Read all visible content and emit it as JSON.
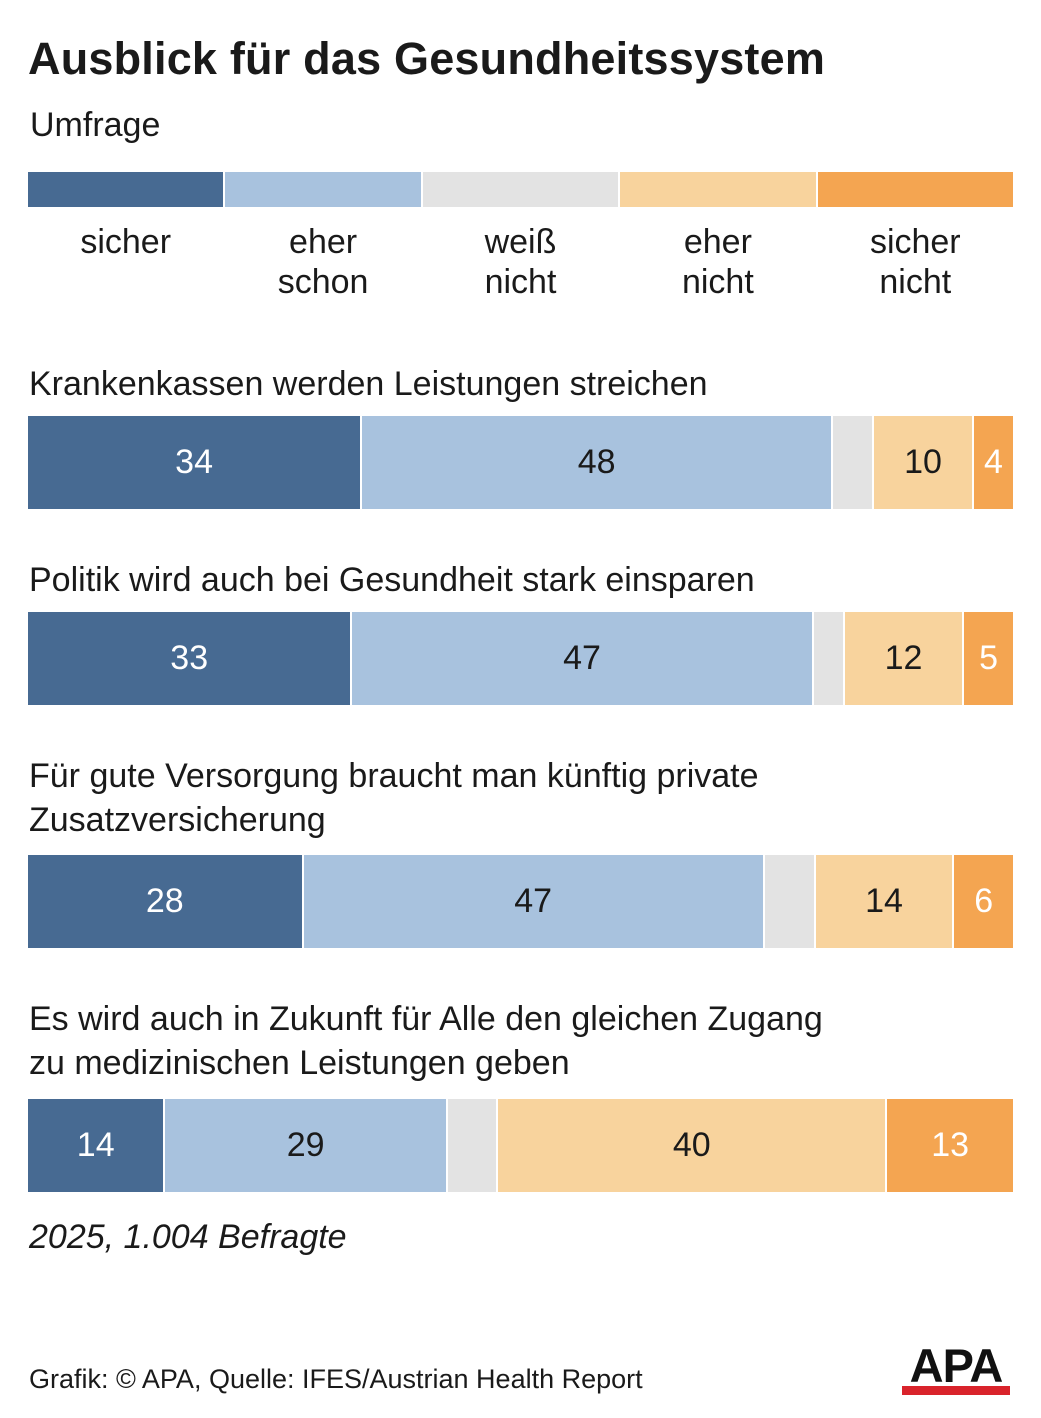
{
  "title": "Ausblick für das Gesundheitssystem",
  "subtitle": "Umfrage",
  "legend": [
    {
      "label_lines": [
        "sicher"
      ],
      "color": "#476a92"
    },
    {
      "label_lines": [
        "eher",
        "schon"
      ],
      "color": "#a8c2de"
    },
    {
      "label_lines": [
        "weiß",
        "nicht"
      ],
      "color": "#e3e3e3"
    },
    {
      "label_lines": [
        "eher",
        "nicht"
      ],
      "color": "#f8d39d"
    },
    {
      "label_lines": [
        "sicher",
        "nicht"
      ],
      "color": "#f4a551"
    }
  ],
  "chart_data": {
    "type": "bar",
    "orientation": "horizontal-stacked-100",
    "series_names": [
      "sicher",
      "eher schon",
      "weiß nicht",
      "eher nicht",
      "sicher nicht"
    ],
    "questions": [
      {
        "label_lines": [
          "Krankenkassen werden Leistungen streichen"
        ],
        "values": [
          34,
          48,
          4,
          10,
          4
        ],
        "labels": [
          "34",
          "48",
          "",
          "10",
          "4"
        ]
      },
      {
        "label_lines": [
          "Politik wird auch bei Gesundheit stark einsparen"
        ],
        "values": [
          33,
          47,
          3,
          12,
          5
        ],
        "labels": [
          "33",
          "47",
          "",
          "12",
          "5"
        ]
      },
      {
        "label_lines": [
          "Für gute Versorgung braucht man künftig private",
          "Zusatzversicherung"
        ],
        "values": [
          28,
          47,
          5,
          14,
          6
        ],
        "labels": [
          "28",
          "47",
          "",
          "14",
          "6"
        ]
      },
      {
        "label_lines": [
          "Es wird auch in Zukunft für Alle den gleichen Zugang",
          "zu medizinischen Leistungen geben"
        ],
        "values": [
          14,
          29,
          5,
          40,
          13
        ],
        "labels": [
          "14",
          "29",
          "",
          "40",
          "13"
        ]
      }
    ],
    "label_text_colors": [
      "#ffffff",
      "#1a1a1a",
      "#1a1a1a",
      "#1a1a1a",
      "#ffffff"
    ]
  },
  "footnote": "2025, 1.004 Befragte",
  "credit": "Grafik: © APA, Quelle: IFES/Austrian Health Report",
  "logo_text": "APA"
}
